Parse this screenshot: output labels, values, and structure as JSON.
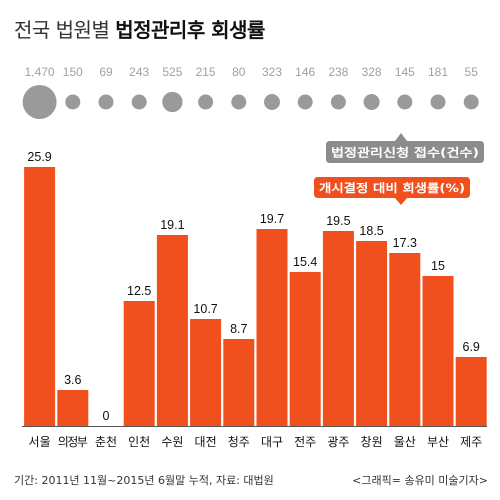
{
  "header": {
    "title_prefix": "전국 법원별",
    "title_main": "법정관리후 회생률"
  },
  "footer": {
    "source": "기간: 2011년 11월~2015년 6월말 누적, 자료: 대법원",
    "credit": "<그래픽= 송유미 미술기자>"
  },
  "chart_data": {
    "type": "bar",
    "categories": [
      "서울",
      "의정부",
      "춘천",
      "인천",
      "수원",
      "대전",
      "청주",
      "대구",
      "전주",
      "광주",
      "창원",
      "울산",
      "부산",
      "제주"
    ],
    "series": [
      {
        "name": "개시결정 대비 회생률(%)",
        "values": [
          25.9,
          3.6,
          0,
          12.5,
          19.1,
          10.7,
          8.7,
          19.7,
          15.4,
          19.5,
          18.5,
          17.3,
          15,
          6.9
        ],
        "labels": [
          "25.9",
          "3.6",
          "0",
          "12.5",
          "19.1",
          "10.7",
          "8.7",
          "19.7",
          "15.4",
          "19.5",
          "18.5",
          "17.3",
          "15",
          "6.9"
        ],
        "color": "#f0501e"
      },
      {
        "name": "법정관리신청 접수(건수)",
        "values": [
          1470,
          150,
          69,
          243,
          525,
          215,
          80,
          323,
          146,
          238,
          328,
          145,
          181,
          55
        ],
        "labels": [
          "1,470",
          "150",
          "69",
          "243",
          "525",
          "215",
          "80",
          "323",
          "146",
          "238",
          "328",
          "145",
          "181",
          "55"
        ],
        "color": "#9a9a9a"
      }
    ],
    "legend": {
      "cases_label": "법정관리신청 접수(건수)",
      "rate_label": "개시결정 대비 회생률(%)"
    },
    "colors": {
      "bar": "#f0501e",
      "bubble": "#9a9a9a",
      "bubble_text": "#a0a0a0",
      "legend_gray": "#8c8c8c",
      "axis": "#555555"
    },
    "ylim": [
      0,
      30
    ],
    "grid": false
  }
}
